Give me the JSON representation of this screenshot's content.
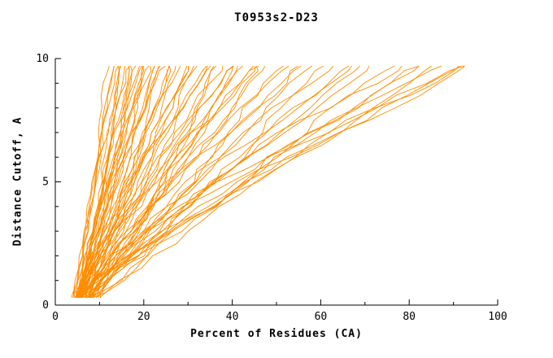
{
  "title": "T0953s2-D23",
  "x_axis": {
    "label": "Percent of Residues (CA)",
    "min": 0,
    "max": 100,
    "major_ticks": [
      0,
      20,
      40,
      60,
      80,
      100
    ],
    "minor_ticks": [
      10,
      30,
      50,
      70,
      90
    ]
  },
  "y_axis": {
    "label": "Distance Cutoff, A",
    "min": 0,
    "max": 10,
    "major_ticks": [
      0,
      5,
      10
    ],
    "minor_ticks": [
      1,
      2,
      3,
      4,
      6,
      7,
      8,
      9
    ]
  },
  "colors": {
    "curve": "#ff8c00",
    "axis": "#000000",
    "background": "#ffffff",
    "text": "#000000"
  },
  "chart_data": {
    "type": "line",
    "title": "T0953s2-D23",
    "xlabel": "Percent of Residues (CA)",
    "ylabel": "Distance Cutoff, A",
    "xlim": [
      0,
      100
    ],
    "ylim": [
      0,
      10
    ],
    "grid": false,
    "legend": "none",
    "description": "Bundle of per-model GDT-style curves: percent of CA residues (x) under each distance cutoff (y). Curves rise from ~3-9% at cutoff 0 and fan out to 12-98% at cutoff 10.",
    "curve_format": [
      "x_percent_at_bottom",
      "x_percent_at_top",
      "shape_exponent",
      "wobble_phase"
    ],
    "curves": [
      [
        4.0,
        12,
        0.85,
        0.3
      ],
      [
        4.5,
        13,
        0.9,
        1.1
      ],
      [
        3.8,
        14,
        1.0,
        2.2
      ],
      [
        5.0,
        14.5,
        0.8,
        3.0
      ],
      [
        4.2,
        15,
        1.1,
        4.1
      ],
      [
        5.5,
        15.5,
        0.95,
        5.2
      ],
      [
        4.8,
        16,
        0.85,
        0.7
      ],
      [
        5.2,
        16.5,
        1.05,
        1.9
      ],
      [
        4.0,
        17,
        0.9,
        2.8
      ],
      [
        5.8,
        17.5,
        1.15,
        3.6
      ],
      [
        4.4,
        18,
        0.8,
        4.4
      ],
      [
        6.0,
        18.5,
        1.0,
        5.5
      ],
      [
        4.6,
        19,
        0.95,
        0.2
      ],
      [
        5.4,
        19.5,
        1.1,
        1.4
      ],
      [
        4.1,
        20,
        0.85,
        2.5
      ],
      [
        6.2,
        20.5,
        1.2,
        3.3
      ],
      [
        4.9,
        21,
        0.9,
        4.7
      ],
      [
        5.6,
        21.5,
        1.0,
        5.8
      ],
      [
        4.3,
        22,
        1.15,
        0.9
      ],
      [
        6.4,
        22.5,
        0.85,
        2.0
      ],
      [
        5.0,
        23,
        0.95,
        3.1
      ],
      [
        4.7,
        24,
        1.05,
        4.2
      ],
      [
        6.6,
        24.5,
        0.9,
        5.3
      ],
      [
        5.2,
        25,
        1.2,
        0.5
      ],
      [
        4.4,
        26,
        0.8,
        1.6
      ],
      [
        6.8,
        26.5,
        1.0,
        2.7
      ],
      [
        5.5,
        27,
        1.1,
        3.8
      ],
      [
        4.8,
        28,
        0.9,
        4.9
      ],
      [
        6.0,
        29,
        1.25,
        0.1
      ],
      [
        5.1,
        30,
        0.85,
        1.2
      ],
      [
        4.5,
        30.5,
        1.0,
        2.3
      ],
      [
        7.0,
        31,
        1.1,
        3.4
      ],
      [
        5.7,
        32,
        0.95,
        4.5
      ],
      [
        4.9,
        33,
        1.2,
        5.6
      ],
      [
        6.2,
        34,
        0.9,
        0.8
      ],
      [
        5.3,
        35,
        1.05,
        1.9
      ],
      [
        4.6,
        36,
        1.3,
        3.0
      ],
      [
        7.2,
        37,
        0.85,
        4.1
      ],
      [
        5.9,
        38,
        1.0,
        5.2
      ],
      [
        5.0,
        39,
        1.15,
        0.4
      ],
      [
        6.4,
        40,
        0.95,
        1.5
      ],
      [
        5.4,
        41,
        1.25,
        2.6
      ],
      [
        4.7,
        42,
        0.9,
        3.7
      ],
      [
        7.4,
        43,
        1.05,
        4.8
      ],
      [
        6.0,
        44,
        1.2,
        5.9
      ],
      [
        5.2,
        45,
        0.95,
        1.0
      ],
      [
        6.6,
        46,
        1.1,
        2.1
      ],
      [
        5.6,
        47,
        1.3,
        3.2
      ],
      [
        4.8,
        48,
        1.0,
        4.3
      ],
      [
        7.6,
        50,
        1.15,
        5.4
      ],
      [
        6.1,
        52,
        0.9,
        0.6
      ],
      [
        5.3,
        54,
        1.2,
        1.7
      ],
      [
        6.8,
        56,
        1.05,
        2.8
      ],
      [
        5.7,
        58,
        1.3,
        3.9
      ],
      [
        4.9,
        60,
        1.1,
        5.0
      ],
      [
        7.8,
        62,
        0.95,
        0.2
      ],
      [
        6.3,
        64,
        1.2,
        1.3
      ],
      [
        5.5,
        67,
        1.05,
        2.4
      ],
      [
        7.0,
        70,
        1.3,
        3.5
      ],
      [
        5.8,
        72,
        1.1,
        4.6
      ],
      [
        8.0,
        75,
        1.25,
        5.7
      ],
      [
        6.5,
        78,
        1.0,
        0.9
      ],
      [
        5.9,
        81,
        1.35,
        2.0
      ],
      [
        7.2,
        84,
        1.15,
        3.1
      ],
      [
        6.0,
        87,
        1.3,
        4.2
      ],
      [
        8.2,
        89,
        1.1,
        5.3
      ],
      [
        6.7,
        91,
        1.4,
        0.5
      ],
      [
        6.1,
        93,
        1.2,
        1.6
      ],
      [
        7.5,
        95,
        1.35,
        2.7
      ],
      [
        6.3,
        97,
        1.25,
        3.8
      ],
      [
        8.5,
        98,
        1.4,
        4.9
      ],
      [
        3.5,
        13.5,
        0.9,
        5.9
      ]
    ]
  }
}
